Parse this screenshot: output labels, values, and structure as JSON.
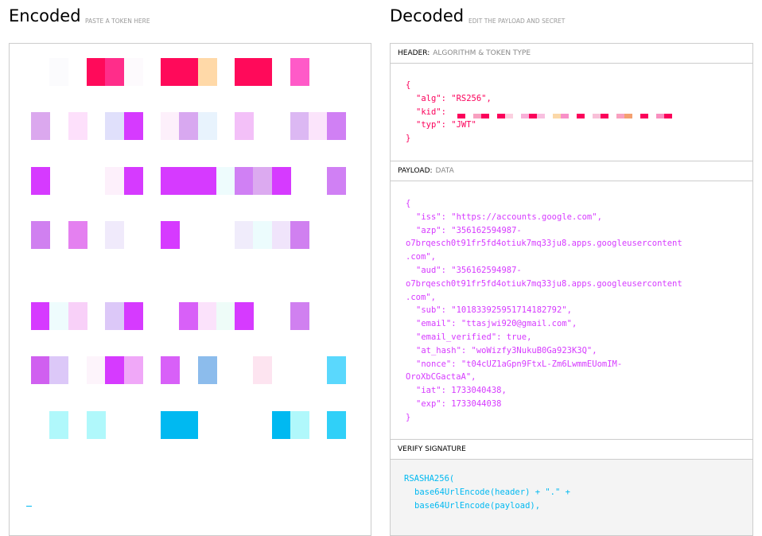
{
  "encoded": {
    "title": "Encoded",
    "hint": "PASTE A TOKEN HERE"
  },
  "decoded": {
    "title": "Decoded",
    "hint": "EDIT THE PAYLOAD AND SECRET"
  },
  "header_section": {
    "label": "HEADER:",
    "sublabel": "ALGORITHM & TOKEN TYPE",
    "lines": [
      "{",
      "\"alg\": \"RS256\",",
      "\"kid\": ",
      "\"typ\": \"JWT\"",
      "}"
    ]
  },
  "payload_section": {
    "label": "PAYLOAD:",
    "sublabel": "DATA",
    "lines": [
      "{",
      "\"iss\": \"https://accounts.google.com\",",
      "\"azp\": \"356162594987-",
      "o7brqesch0t91fr5fd4otiuk7mq33ju8.apps.googleusercontent",
      ".com\",",
      "\"aud\": \"356162594987-",
      "o7brqesch0t91fr5fd4otiuk7mq33ju8.apps.googleusercontent",
      ".com\",",
      "\"sub\": \"101833925951714182792\",",
      "\"email\": \"ttasjwi920@gmail.com\",",
      "\"email_verified\": true,",
      "\"at_hash\": \"woWizfy3NukuB0Ga923K3Q\",",
      "\"nonce\": \"t04cUZ1aGpn9FtxL-Zm6LwmmEUomIM-",
      "OroXbCGactaA\",",
      "\"iat\": 1733040438,",
      "\"exp\": 1733044038",
      "}"
    ]
  },
  "verify_section": {
    "label": "VERIFY SIGNATURE",
    "lines": [
      "RSASHA256(",
      "base64UrlEncode(header) + \".\" +",
      "base64UrlEncode(payload),"
    ]
  }
}
